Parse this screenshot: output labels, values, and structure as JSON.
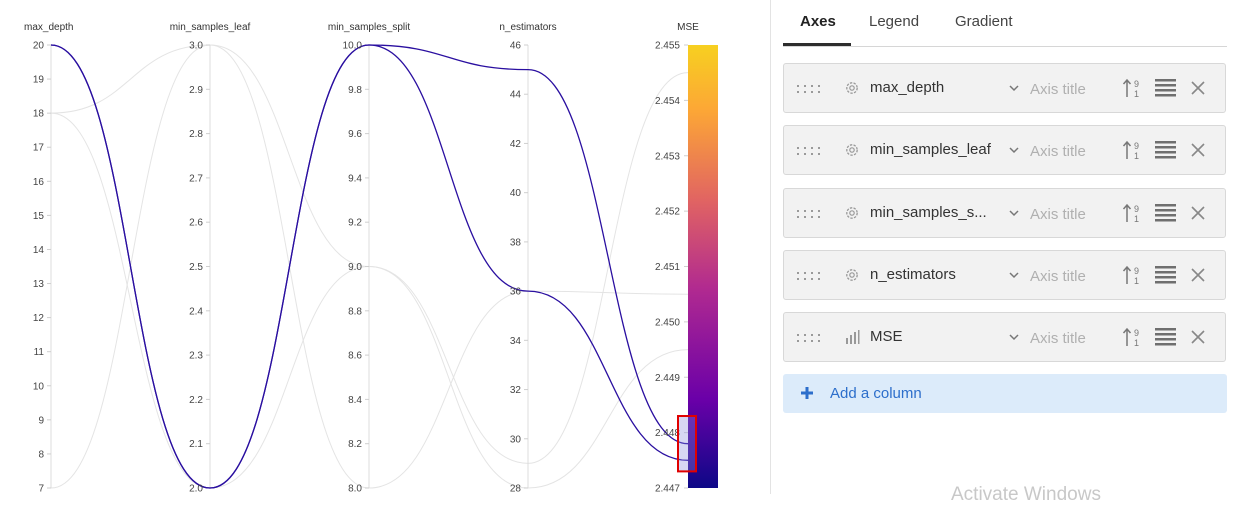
{
  "chart_data": {
    "type": "parallel_coordinates",
    "axes": [
      {
        "name": "max_depth",
        "range": [
          7,
          20
        ],
        "ticks": [
          "20",
          "19",
          "18",
          "17",
          "16",
          "15",
          "14",
          "13",
          "12",
          "11",
          "10",
          "9",
          "8",
          "7"
        ]
      },
      {
        "name": "min_samples_leaf",
        "range": [
          2.0,
          3.0
        ],
        "ticks": [
          "3.0",
          "2.9",
          "2.8",
          "2.7",
          "2.6",
          "2.5",
          "2.4",
          "2.3",
          "2.2",
          "2.1",
          "2.0"
        ]
      },
      {
        "name": "min_samples_split",
        "range": [
          8.0,
          10.0
        ],
        "ticks": [
          "10.0",
          "9.8",
          "9.6",
          "9.4",
          "9.2",
          "9.0",
          "8.8",
          "8.6",
          "8.4",
          "8.2",
          "8.0"
        ]
      },
      {
        "name": "n_estimators",
        "range": [
          28,
          46
        ],
        "ticks": [
          "46",
          "44",
          "42",
          "40",
          "38",
          "36",
          "34",
          "32",
          "30",
          "28"
        ]
      },
      {
        "name": "MSE",
        "range": [
          2.447,
          2.455
        ],
        "ticks": [
          "2.455",
          "2.454",
          "2.453",
          "2.452",
          "2.451",
          "2.450",
          "2.449",
          "2.448",
          "2.447"
        ]
      }
    ],
    "colorscale": {
      "name": "plasma",
      "min": 2.447,
      "max": 2.455,
      "stops": [
        "#0d0887",
        "#6a00a8",
        "#b12a90",
        "#e16462",
        "#fca636",
        "#f0f921"
      ]
    },
    "highlighted_runs": [
      {
        "values": [
          20,
          2.0,
          10.0,
          45,
          2.4478
        ]
      },
      {
        "values": [
          20,
          2.0,
          10.0,
          36,
          2.4475
        ]
      }
    ],
    "background_runs": [
      {
        "values": [
          18,
          3.0,
          9.0,
          29,
          2.4545
        ]
      },
      {
        "values": [
          7,
          3.0,
          8.0,
          36,
          2.4505
        ]
      },
      {
        "values": [
          18,
          2.0,
          9.0,
          28,
          2.4495
        ]
      }
    ],
    "brush": {
      "axis": "MSE",
      "range": [
        2.4473,
        2.4483
      ]
    }
  },
  "panel": {
    "tabs": [
      {
        "label": "Axes",
        "active": true
      },
      {
        "label": "Legend",
        "active": false
      },
      {
        "label": "Gradient",
        "active": false
      }
    ],
    "axis_title_placeholder": "Axis title",
    "rows": [
      {
        "name": "max_depth",
        "kind_icon": "gear-icon"
      },
      {
        "name": "min_samples_leaf",
        "kind_icon": "gear-icon"
      },
      {
        "name": "min_samples_s...",
        "kind_icon": "gear-icon"
      },
      {
        "name": "n_estimators",
        "kind_icon": "gear-icon"
      },
      {
        "name": "MSE",
        "kind_icon": "bar-chart-icon"
      }
    ],
    "add_column_label": "Add a column",
    "watermark": "Activate Windows"
  }
}
